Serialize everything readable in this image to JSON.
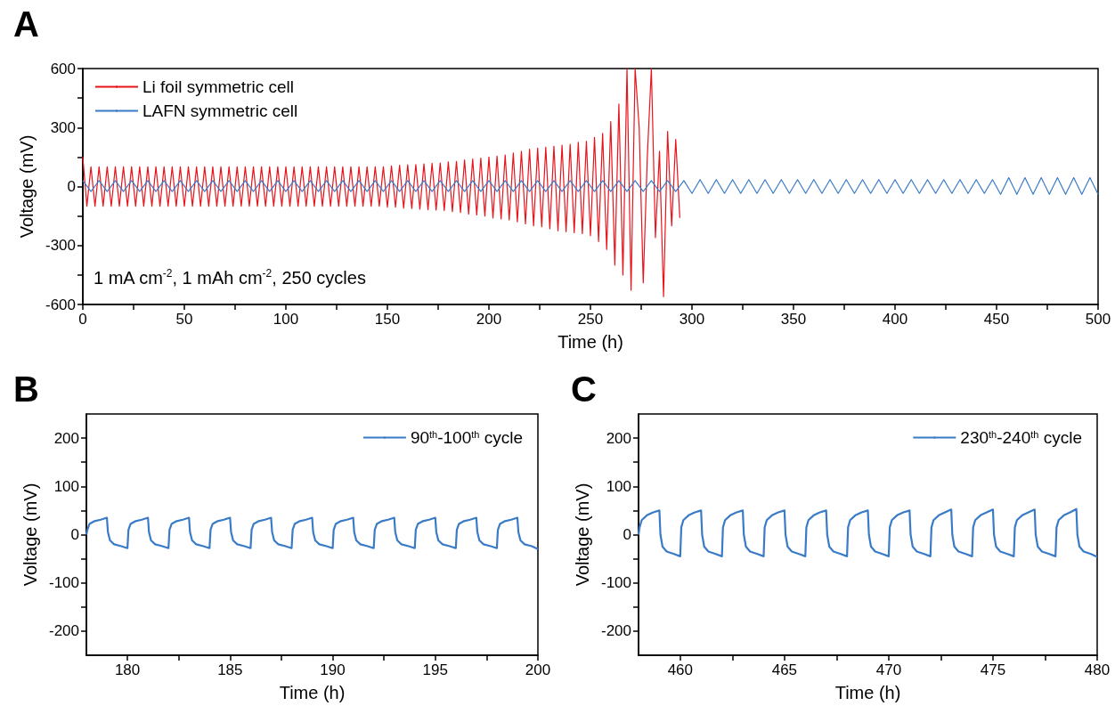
{
  "chart_data": [
    {
      "type": "line",
      "title": "A",
      "xlabel": "Time (h)",
      "ylabel": "Voltage (mV)",
      "legend": "top left",
      "marker": "none",
      "line_style": "solid",
      "xlim": [
        0,
        500
      ],
      "xticks": [
        0,
        {
          "value": 25,
          "label": null
        },
        50,
        {
          "value": 75,
          "label": null
        },
        100,
        {
          "value": 125,
          "label": null
        },
        150,
        {
          "value": 175,
          "label": null
        },
        200,
        {
          "value": 225,
          "label": null
        },
        250,
        {
          "value": 275,
          "label": null
        },
        300,
        {
          "value": 325,
          "label": null
        },
        350,
        {
          "value": 375,
          "label": null
        },
        400,
        {
          "value": 425,
          "label": null
        },
        450,
        {
          "value": 475,
          "label": null
        },
        500
      ],
      "ylim": [
        -600,
        600
      ],
      "yticks": [
        -600,
        {
          "value": -450,
          "label": null
        },
        -300,
        {
          "value": -150,
          "label": null
        },
        0,
        {
          "value": 150,
          "label": null
        },
        300,
        {
          "value": 450,
          "label": null
        },
        600
      ],
      "annotations": [
        "1 mA cm$^{-2}$, 1 mAh cm$^{-2}$, 250 cycles"
      ],
      "series": [
        {
          "name": "Li foil symmetric cell",
          "color": "#e8141c",
          "x": [
            0,
            2,
            4,
            6,
            8,
            10,
            12,
            14,
            16,
            18,
            20,
            22,
            24,
            26,
            28,
            30,
            32,
            34,
            36,
            38,
            40,
            42,
            44,
            46,
            48,
            50,
            52,
            54,
            56,
            58,
            60,
            62,
            64,
            66,
            68,
            70,
            72,
            74,
            76,
            78,
            80,
            82,
            84,
            86,
            88,
            90,
            92,
            94,
            96,
            98,
            100,
            102,
            104,
            106,
            108,
            110,
            112,
            114,
            116,
            118,
            120,
            122,
            124,
            126,
            128,
            130,
            132,
            134,
            136,
            138,
            140,
            142,
            144,
            146,
            148,
            150,
            152,
            154,
            156,
            158,
            160,
            162,
            164,
            166,
            168,
            170,
            172,
            174,
            176,
            178,
            180,
            182,
            184,
            186,
            188,
            190,
            192,
            194,
            196,
            198,
            200,
            202,
            204,
            206,
            208,
            210,
            212,
            214,
            216,
            218,
            220,
            222,
            224,
            226,
            228,
            230,
            232,
            234,
            236,
            238,
            240,
            242,
            244,
            246,
            248,
            250,
            252,
            254,
            256,
            258,
            260,
            262,
            264,
            266,
            268,
            270,
            272,
            274,
            276,
            278,
            280,
            282,
            284,
            286,
            288,
            290,
            292,
            294
          ],
          "values": [
            150,
            -100,
            100,
            -100,
            100,
            -100,
            100,
            -100,
            100,
            -100,
            100,
            -100,
            100,
            -100,
            100,
            -100,
            100,
            -100,
            100,
            -100,
            100,
            -100,
            100,
            -100,
            100,
            -100,
            100,
            -100,
            100,
            -100,
            100,
            -100,
            100,
            -100,
            100,
            -100,
            100,
            -100,
            100,
            -100,
            100,
            -100,
            100,
            -100,
            100,
            -100,
            100,
            -100,
            100,
            -100,
            100,
            -100,
            100,
            -100,
            100,
            -100,
            100,
            -100,
            100,
            -100,
            100,
            -100,
            100,
            -100,
            100,
            -100,
            100,
            -100,
            100,
            -100,
            100,
            -100,
            100,
            -100,
            100,
            -105,
            105,
            -105,
            108,
            -110,
            110,
            -112,
            112,
            -115,
            115,
            -118,
            118,
            -120,
            120,
            -122,
            125,
            -128,
            128,
            -132,
            135,
            -140,
            140,
            -145,
            145,
            -150,
            150,
            -160,
            155,
            -165,
            160,
            -170,
            170,
            -180,
            180,
            -190,
            190,
            -200,
            195,
            -205,
            200,
            -215,
            205,
            -225,
            210,
            -230,
            215,
            -235,
            225,
            -240,
            230,
            -250,
            250,
            -280,
            270,
            -320,
            330,
            -400,
            420,
            -450,
            600,
            -528,
            600,
            300,
            -490,
            150,
            600,
            -260,
            180,
            -560,
            280,
            -200,
            240,
            -160
          ]
        },
        {
          "name": "LAFN symmetric cell",
          "color": "#3a7bc8",
          "x": [
            0,
            4,
            8,
            12,
            16,
            20,
            24,
            28,
            32,
            36,
            40,
            44,
            48,
            52,
            56,
            60,
            64,
            68,
            72,
            76,
            80,
            84,
            88,
            92,
            96,
            100,
            104,
            108,
            112,
            116,
            120,
            124,
            128,
            132,
            136,
            140,
            144,
            148,
            152,
            156,
            160,
            164,
            168,
            172,
            176,
            180,
            184,
            188,
            192,
            196,
            200,
            204,
            208,
            212,
            216,
            220,
            224,
            228,
            232,
            236,
            240,
            244,
            248,
            252,
            256,
            260,
            264,
            268,
            272,
            276,
            280,
            284,
            288,
            292,
            296,
            300,
            304,
            308,
            312,
            316,
            320,
            324,
            328,
            332,
            336,
            340,
            344,
            348,
            352,
            356,
            360,
            364,
            368,
            372,
            376,
            380,
            384,
            388,
            392,
            396,
            400,
            404,
            408,
            412,
            416,
            420,
            424,
            428,
            432,
            436,
            440,
            444,
            448,
            452,
            456,
            460,
            464,
            468,
            472,
            476,
            480,
            484,
            488,
            492,
            496,
            500
          ],
          "values": [
            30,
            -25,
            30,
            -25,
            30,
            -25,
            30,
            -25,
            30,
            -25,
            30,
            -25,
            30,
            -25,
            30,
            -25,
            30,
            -25,
            30,
            -25,
            30,
            -25,
            30,
            -25,
            30,
            -25,
            30,
            -25,
            30,
            -25,
            30,
            -25,
            30,
            -25,
            30,
            -25,
            30,
            -25,
            30,
            -25,
            30,
            -25,
            30,
            -25,
            30,
            -25,
            30,
            -25,
            30,
            -25,
            30,
            -25,
            30,
            -25,
            30,
            -25,
            30,
            -25,
            30,
            -25,
            30,
            -25,
            30,
            -25,
            30,
            -25,
            30,
            -25,
            30,
            -25,
            30,
            -25,
            30,
            -25,
            30,
            -35,
            35,
            -35,
            35,
            -35,
            35,
            -35,
            35,
            -35,
            35,
            -35,
            35,
            -35,
            35,
            -35,
            35,
            -35,
            35,
            -35,
            35,
            -35,
            35,
            -35,
            35,
            -35,
            35,
            -35,
            35,
            -35,
            35,
            -35,
            35,
            -35,
            35,
            -35,
            35,
            -35,
            35,
            -40,
            45,
            -40,
            45,
            -40,
            45,
            -40,
            45,
            -40,
            45,
            -40,
            45,
            -40
          ]
        }
      ]
    },
    {
      "type": "line",
      "title": "B",
      "xlabel": "Time (h)",
      "ylabel": "Voltage (mV)",
      "legend": "top right",
      "marker": "none",
      "line_style": "solid",
      "xlim": [
        178,
        200
      ],
      "xticks": [
        180,
        {
          "value": 182.5,
          "label": null
        },
        185,
        {
          "value": 187.5,
          "label": null
        },
        190,
        {
          "value": 192.5,
          "label": null
        },
        195,
        {
          "value": 197.5,
          "label": null
        },
        200
      ],
      "ylim": [
        -250,
        250
      ],
      "yticks": [
        -200,
        {
          "value": -150,
          "label": null
        },
        -100,
        {
          "value": -50,
          "label": null
        },
        0,
        {
          "value": 50,
          "label": null
        },
        100,
        {
          "value": 150,
          "label": null
        },
        200
      ],
      "series": [
        {
          "name": "90$^{th}$-100$^{th}$ cycle",
          "color": "#3a7bc8",
          "x": [
            178,
            178.05,
            178.15,
            178.4,
            178.7,
            179,
            179.05,
            179.15,
            179.35,
            179.7,
            180,
            180.05,
            180.15,
            180.4,
            180.7,
            181,
            181.05,
            181.15,
            181.35,
            181.7,
            182,
            182.05,
            182.15,
            182.4,
            182.7,
            183,
            183.05,
            183.15,
            183.35,
            183.7,
            184,
            184.05,
            184.15,
            184.4,
            184.7,
            185,
            185.05,
            185.15,
            185.35,
            185.7,
            186,
            186.05,
            186.15,
            186.4,
            186.7,
            187,
            187.05,
            187.15,
            187.35,
            187.7,
            188,
            188.05,
            188.15,
            188.4,
            188.7,
            189,
            189.05,
            189.15,
            189.35,
            189.7,
            190,
            190.05,
            190.15,
            190.4,
            190.7,
            191,
            191.05,
            191.15,
            191.35,
            191.7,
            192,
            192.05,
            192.15,
            192.4,
            192.7,
            193,
            193.05,
            193.15,
            193.35,
            193.7,
            194,
            194.05,
            194.15,
            194.4,
            194.7,
            195,
            195.05,
            195.15,
            195.35,
            195.7,
            196,
            196.05,
            196.15,
            196.4,
            196.7,
            197,
            197.05,
            197.15,
            197.35,
            197.7,
            198,
            198.05,
            198.15,
            198.4,
            198.7,
            199,
            199.05,
            199.15,
            199.35,
            199.7,
            200
          ],
          "values": [
            0,
            10,
            22,
            28,
            31,
            35,
            5,
            -12,
            -20,
            -24,
            -28,
            10,
            22,
            28,
            31,
            35,
            5,
            -12,
            -20,
            -24,
            -28,
            10,
            22,
            28,
            31,
            35,
            5,
            -12,
            -20,
            -24,
            -28,
            10,
            22,
            28,
            31,
            35,
            5,
            -12,
            -20,
            -24,
            -28,
            10,
            22,
            28,
            31,
            35,
            5,
            -12,
            -20,
            -24,
            -28,
            10,
            22,
            28,
            31,
            35,
            5,
            -12,
            -20,
            -24,
            -28,
            10,
            22,
            28,
            31,
            35,
            5,
            -12,
            -20,
            -24,
            -28,
            10,
            22,
            28,
            31,
            35,
            5,
            -12,
            -20,
            -24,
            -28,
            10,
            22,
            28,
            31,
            35,
            5,
            -12,
            -20,
            -24,
            -28,
            10,
            22,
            28,
            31,
            35,
            5,
            -12,
            -20,
            -24,
            -28,
            10,
            22,
            28,
            31,
            35,
            5,
            -12,
            -20,
            -24,
            -30
          ]
        }
      ]
    },
    {
      "type": "line",
      "title": "C",
      "xlabel": "Time (h)",
      "ylabel": "Voltage (mV)",
      "legend": "top right",
      "marker": "none",
      "line_style": "solid",
      "xlim": [
        458,
        480
      ],
      "xticks": [
        460,
        {
          "value": 462.5,
          "label": null
        },
        465,
        {
          "value": 467.5,
          "label": null
        },
        470,
        {
          "value": 472.5,
          "label": null
        },
        475,
        {
          "value": 477.5,
          "label": null
        },
        480
      ],
      "ylim": [
        -250,
        250
      ],
      "yticks": [
        -200,
        {
          "value": -150,
          "label": null
        },
        -100,
        {
          "value": -50,
          "label": null
        },
        0,
        {
          "value": 50,
          "label": null
        },
        100,
        {
          "value": 150,
          "label": null
        },
        200
      ],
      "series": [
        {
          "name": "230$^{th}$-240$^{th}$ cycle",
          "color": "#3a7bc8",
          "x": [
            458,
            458.05,
            458.15,
            458.4,
            458.7,
            459,
            459.05,
            459.15,
            459.35,
            459.7,
            460,
            460.05,
            460.15,
            460.4,
            460.7,
            461,
            461.05,
            461.15,
            461.35,
            461.7,
            462,
            462.05,
            462.15,
            462.4,
            462.7,
            463,
            463.05,
            463.15,
            463.35,
            463.7,
            464,
            464.05,
            464.15,
            464.4,
            464.7,
            465,
            465.05,
            465.15,
            465.35,
            465.7,
            466,
            466.05,
            466.15,
            466.4,
            466.7,
            467,
            467.05,
            467.15,
            467.35,
            467.7,
            468,
            468.05,
            468.15,
            468.4,
            468.7,
            469,
            469.05,
            469.15,
            469.35,
            469.7,
            470,
            470.05,
            470.15,
            470.4,
            470.7,
            471,
            471.05,
            471.15,
            471.35,
            471.7,
            472,
            472.05,
            472.15,
            472.4,
            472.7,
            473,
            473.05,
            473.15,
            473.35,
            473.7,
            474,
            474.05,
            474.15,
            474.4,
            474.7,
            475,
            475.05,
            475.15,
            475.35,
            475.7,
            476,
            476.05,
            476.15,
            476.4,
            476.7,
            477,
            477.05,
            477.15,
            477.35,
            477.7,
            478,
            478.05,
            478.15,
            478.4,
            478.7,
            479,
            479.05,
            479.15,
            479.35,
            479.7,
            480
          ],
          "values": [
            0,
            15,
            30,
            40,
            46,
            50,
            0,
            -25,
            -35,
            -40,
            -45,
            15,
            30,
            40,
            46,
            50,
            0,
            -25,
            -35,
            -40,
            -45,
            15,
            30,
            40,
            46,
            50,
            0,
            -25,
            -35,
            -40,
            -45,
            15,
            30,
            40,
            46,
            50,
            0,
            -25,
            -35,
            -40,
            -45,
            15,
            30,
            40,
            46,
            50,
            0,
            -25,
            -35,
            -40,
            -45,
            15,
            30,
            40,
            46,
            50,
            0,
            -25,
            -35,
            -40,
            -45,
            15,
            30,
            40,
            46,
            50,
            0,
            -25,
            -35,
            -40,
            -45,
            15,
            30,
            40,
            46,
            52,
            0,
            -25,
            -35,
            -40,
            -45,
            15,
            30,
            40,
            46,
            52,
            0,
            -25,
            -35,
            -40,
            -45,
            15,
            30,
            40,
            46,
            52,
            0,
            -25,
            -35,
            -40,
            -45,
            15,
            30,
            40,
            46,
            53,
            0,
            -25,
            -35,
            -40,
            -46
          ]
        }
      ]
    }
  ]
}
